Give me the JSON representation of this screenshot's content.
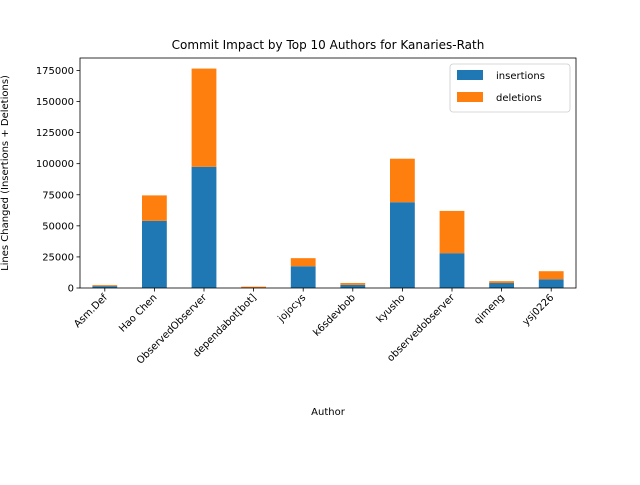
{
  "chart_data": {
    "type": "bar",
    "stacked": true,
    "title": "Commit Impact by Top 10 Authors for Kanaries-Rath",
    "xlabel": "Author",
    "ylabel": "Lines Changed (Insertions + Deletions)",
    "categories": [
      "Asm.Def",
      "Hao Chen",
      "ObservedObserver",
      "dependabot[bot]",
      "jojocys",
      "k6sdevbob",
      "kyusho",
      "observedobserver",
      "qimeng",
      "ysj0226"
    ],
    "series": [
      {
        "name": "insertions",
        "color": "#1f77b4",
        "values": [
          1500,
          54000,
          97500,
          300,
          17500,
          2500,
          69000,
          28000,
          4000,
          7000
        ]
      },
      {
        "name": "deletions",
        "color": "#ff7f0e",
        "values": [
          800,
          20500,
          79000,
          800,
          6500,
          1500,
          35000,
          34000,
          1500,
          6500
        ]
      }
    ],
    "ylim": [
      0,
      185000
    ],
    "yticks": [
      0,
      25000,
      50000,
      75000,
      100000,
      125000,
      150000,
      175000
    ],
    "legend_position": "top-right",
    "grid": false
  }
}
